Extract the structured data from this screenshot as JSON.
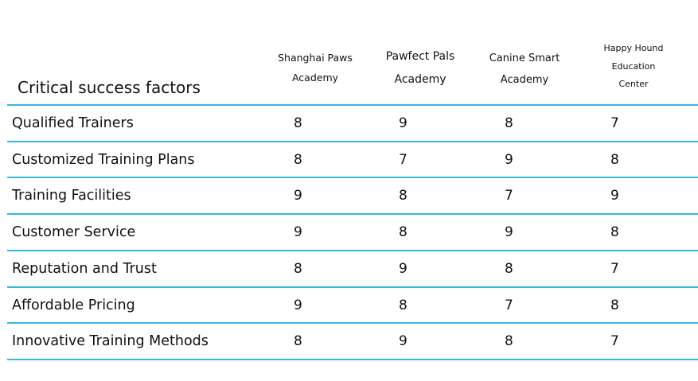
{
  "table": {
    "corner_label": "Critical success factors",
    "columns": [
      {
        "lines": [
          "Shanghai Paws",
          "Academy"
        ]
      },
      {
        "lines": [
          "Pawfect Pals",
          "Academy"
        ]
      },
      {
        "lines": [
          "Canine Smart",
          "Academy"
        ]
      },
      {
        "lines": [
          "Happy Hound",
          "Education",
          "Center"
        ]
      }
    ],
    "rows": [
      {
        "label": "Qualified Trainers",
        "scores": [
          "8",
          "9",
          "8",
          "7"
        ]
      },
      {
        "label": "Customized Training Plans",
        "scores": [
          "8",
          "7",
          "9",
          "8"
        ]
      },
      {
        "label": "Training Facilities",
        "scores": [
          "9",
          "8",
          "7",
          "9"
        ]
      },
      {
        "label": "Customer Service",
        "scores": [
          "9",
          "8",
          "9",
          "8"
        ]
      },
      {
        "label": "Reputation and Trust",
        "scores": [
          "8",
          "9",
          "8",
          "7"
        ]
      },
      {
        "label": "Affordable Pricing",
        "scores": [
          "9",
          "8",
          "7",
          "8"
        ]
      },
      {
        "label": "Innovative Training Methods",
        "scores": [
          "8",
          "9",
          "8",
          "7"
        ]
      }
    ],
    "rule_color": "#3bb5de"
  }
}
